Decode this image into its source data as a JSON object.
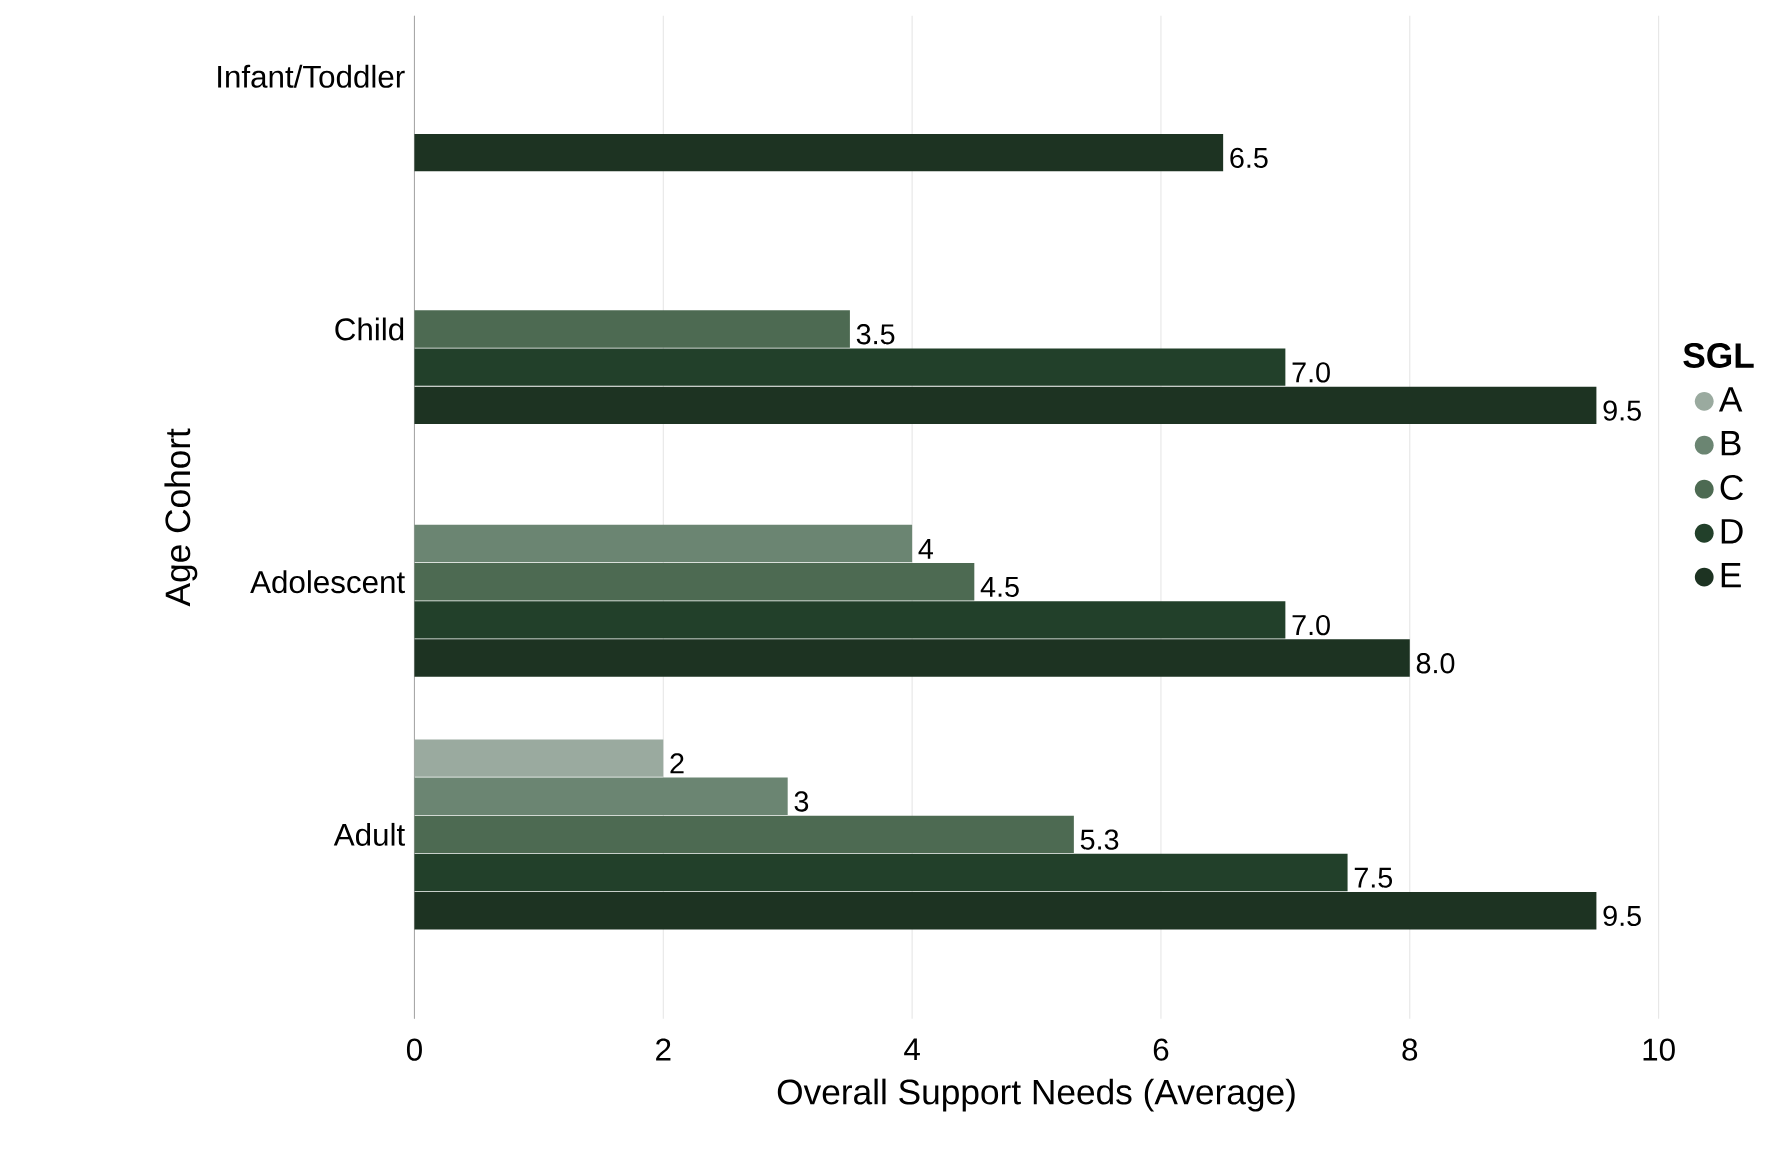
{
  "chart_data": {
    "type": "bar",
    "orientation": "horizontal",
    "xlabel": "Overall Support Needs (Average)",
    "ylabel": "Age Cohort",
    "legend_title": "SGL",
    "categories": [
      "Infant/Toddler",
      "Child",
      "Adolescent",
      "Adult"
    ],
    "series": [
      {
        "name": "A",
        "color": "#9aaa9f",
        "values": [
          null,
          null,
          null,
          2
        ],
        "value_labels": [
          null,
          null,
          null,
          "2"
        ]
      },
      {
        "name": "B",
        "color": "#6b8572",
        "values": [
          null,
          null,
          4,
          3
        ],
        "value_labels": [
          null,
          null,
          "4",
          "3"
        ]
      },
      {
        "name": "C",
        "color": "#4d6a52",
        "values": [
          null,
          3.5,
          4.5,
          5.3
        ],
        "value_labels": [
          null,
          "3.5",
          "4.5",
          "5.3"
        ]
      },
      {
        "name": "D",
        "color": "#22402a",
        "values": [
          null,
          7.0,
          7.0,
          7.5
        ],
        "value_labels": [
          null,
          "7.0",
          "7.0",
          "7.5"
        ]
      },
      {
        "name": "E",
        "color": "#1d3322",
        "values": [
          6.5,
          9.5,
          8.0,
          9.5
        ],
        "value_labels": [
          "6.5",
          "9.5",
          "8.0",
          "9.5"
        ]
      }
    ],
    "xlim": [
      0,
      10
    ],
    "xticks": [
      0,
      2,
      4,
      6,
      8,
      10
    ],
    "grid": "x",
    "legend": "right",
    "marker": "circle"
  }
}
